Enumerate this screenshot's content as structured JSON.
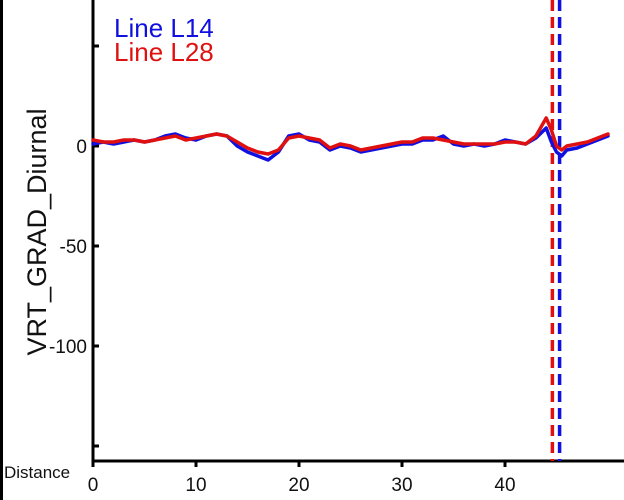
{
  "chart_data": {
    "type": "line",
    "title": "",
    "xlabel": "Distance",
    "ylabel": "VRT_GRAD_Diurnal",
    "xlim": [
      0,
      50
    ],
    "ylim": [
      -155,
      50
    ],
    "xticks": [
      0,
      10,
      20,
      30,
      40
    ],
    "yticks": [
      -150,
      -100,
      -50,
      0,
      50
    ],
    "yticklabels_shown": [
      "0",
      "-50",
      "-100"
    ],
    "grid": false,
    "legend_placement": "top-left",
    "series": [
      {
        "name": "Line L14",
        "color": "#1010e0",
        "x": [
          0,
          1,
          2,
          3,
          4,
          5,
          6,
          7,
          8,
          9,
          10,
          11,
          12,
          13,
          14,
          15,
          16,
          17,
          18,
          19,
          20,
          21,
          22,
          23,
          24,
          25,
          26,
          27,
          28,
          29,
          30,
          31,
          32,
          33,
          34,
          35,
          36,
          37,
          38,
          39,
          40,
          41,
          42,
          43,
          44,
          44.5,
          45,
          45.5,
          46,
          47,
          48,
          49,
          50
        ],
        "values": [
          1,
          2,
          1,
          2,
          3,
          2,
          3,
          5,
          6,
          4,
          3,
          5,
          6,
          5,
          0,
          -3,
          -5,
          -7,
          -3,
          5,
          6,
          3,
          2,
          -2,
          0,
          -1,
          -3,
          -2,
          -1,
          0,
          1,
          1,
          3,
          3,
          5,
          1,
          0,
          1,
          0,
          1,
          3,
          2,
          1,
          4,
          9,
          2,
          -3,
          -5,
          -2,
          -1,
          1,
          3,
          5
        ]
      },
      {
        "name": "Line L28",
        "color": "#e01010",
        "x": [
          0,
          1,
          2,
          3,
          4,
          5,
          6,
          7,
          8,
          9,
          10,
          11,
          12,
          13,
          14,
          15,
          16,
          17,
          18,
          19,
          20,
          21,
          22,
          23,
          24,
          25,
          26,
          27,
          28,
          29,
          30,
          31,
          32,
          33,
          34,
          35,
          36,
          37,
          38,
          39,
          40,
          41,
          42,
          43,
          44,
          44.5,
          45,
          45.5,
          46,
          47,
          48,
          49,
          50
        ],
        "values": [
          3,
          2,
          2,
          3,
          3,
          2,
          3,
          4,
          5,
          3,
          4,
          5,
          6,
          5,
          2,
          -1,
          -3,
          -4,
          -2,
          4,
          5,
          4,
          3,
          -1,
          1,
          0,
          -2,
          -1,
          0,
          1,
          2,
          2,
          4,
          4,
          3,
          2,
          1,
          1,
          1,
          1,
          2,
          2,
          1,
          5,
          14,
          8,
          0,
          -2,
          0,
          1,
          2,
          4,
          6
        ]
      }
    ],
    "vertical_lines": [
      {
        "x": 44.6,
        "color": "#e01010",
        "style": "dashed"
      },
      {
        "x": 45.3,
        "color": "#1010e0",
        "style": "dashed"
      }
    ]
  }
}
